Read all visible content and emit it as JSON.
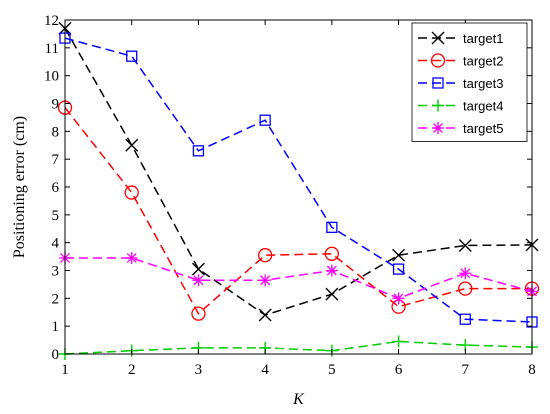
{
  "chart_data": {
    "type": "line",
    "xlabel": "K",
    "ylabel": "Positioning error (cm)",
    "x": [
      1,
      2,
      3,
      4,
      5,
      6,
      7,
      8
    ],
    "xlim": [
      1,
      8
    ],
    "ylim": [
      0,
      12
    ],
    "xticks": [
      "1",
      "2",
      "3",
      "4",
      "5",
      "6",
      "7",
      "8"
    ],
    "yticks": [
      "0",
      "1",
      "2",
      "3",
      "4",
      "5",
      "6",
      "7",
      "8",
      "9",
      "10",
      "11",
      "12"
    ],
    "grid": false,
    "legend_position": "top-right",
    "series": [
      {
        "name": "target1",
        "color": "#000000",
        "marker": "x",
        "values": [
          11.7,
          7.5,
          3.05,
          1.4,
          2.15,
          3.55,
          3.9,
          3.92
        ]
      },
      {
        "name": "target2",
        "color": "#ff0000",
        "marker": "circle",
        "values": [
          8.85,
          5.8,
          1.45,
          3.55,
          3.6,
          1.7,
          2.35,
          2.35
        ]
      },
      {
        "name": "target3",
        "color": "#0000ff",
        "marker": "square",
        "values": [
          11.35,
          10.7,
          7.3,
          8.4,
          4.55,
          3.05,
          1.25,
          1.15
        ]
      },
      {
        "name": "target4",
        "color": "#00cc00",
        "marker": "plus",
        "values": [
          0.0,
          0.12,
          0.22,
          0.22,
          0.12,
          0.45,
          0.32,
          0.25
        ]
      },
      {
        "name": "target5",
        "color": "#ff00ff",
        "marker": "asterisk",
        "values": [
          3.45,
          3.45,
          2.65,
          2.65,
          3.0,
          2.0,
          2.9,
          2.25
        ]
      }
    ]
  }
}
